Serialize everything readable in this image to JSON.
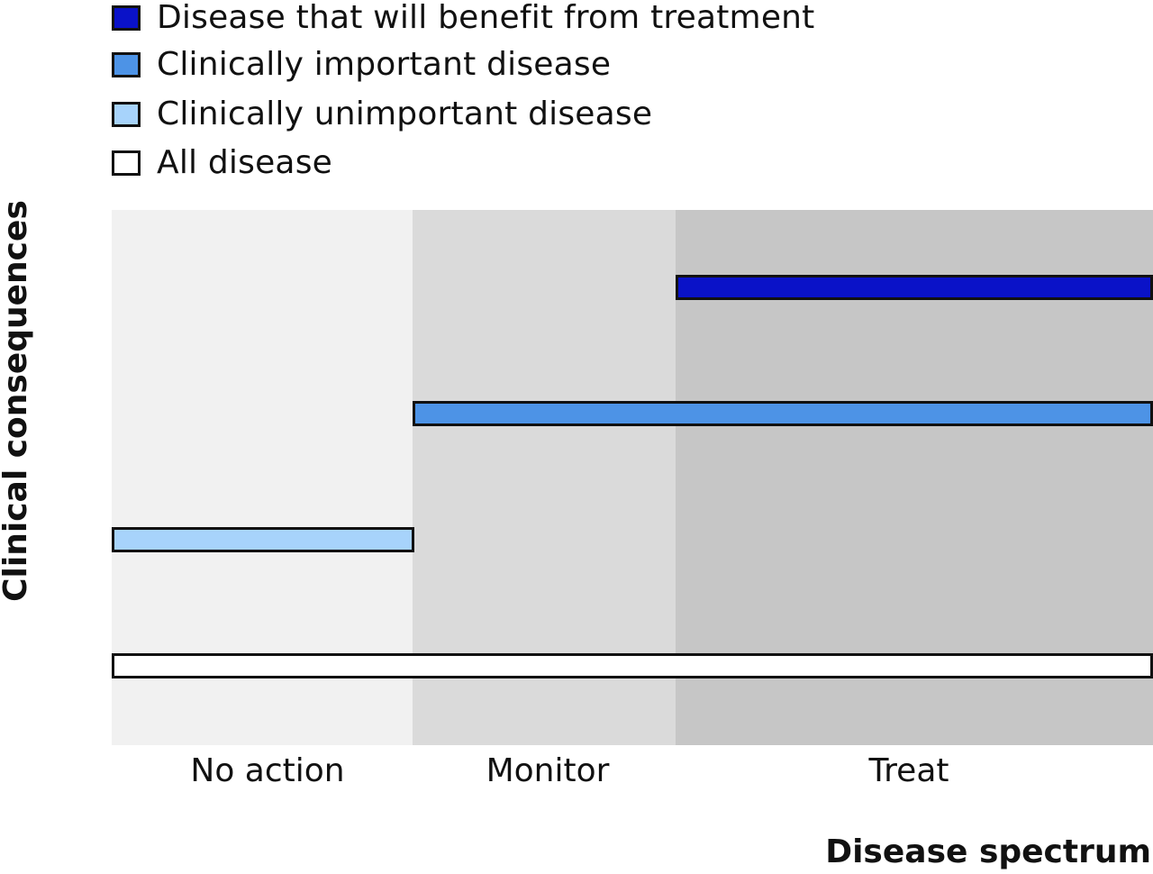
{
  "legend": {
    "items": [
      {
        "label": "Disease that will benefit from treatment",
        "color": "#0a12c8",
        "icon": "square-swatch"
      },
      {
        "label": "Clinically important disease",
        "color": "#4d93e6",
        "icon": "square-swatch"
      },
      {
        "label": "Clinically unimportant disease",
        "color": "#a7d3fb",
        "icon": "square-swatch"
      },
      {
        "label": "All disease",
        "color": "#ffffff",
        "icon": "square-swatch"
      }
    ]
  },
  "zones": [
    {
      "label": "No action",
      "color": "#f1f1f1"
    },
    {
      "label": "Monitor",
      "color": "#dadada"
    },
    {
      "label": "Treat",
      "color": "#c6c6c6"
    }
  ],
  "bars": [
    {
      "series": "Disease that will benefit from treatment",
      "from_zone": "Treat",
      "to_zone": "Treat",
      "color": "#0a12c8"
    },
    {
      "series": "Clinically important disease",
      "from_zone": "Monitor",
      "to_zone": "Treat",
      "color": "#4d93e6"
    },
    {
      "series": "Clinically unimportant disease",
      "from_zone": "No action",
      "to_zone": "No action",
      "color": "#a7d3fb"
    },
    {
      "series": "All disease",
      "from_zone": "No action",
      "to_zone": "Treat",
      "color": "#ffffff"
    }
  ],
  "axes": {
    "x_label": "Disease spectrum",
    "y_label": "Clinical consequences"
  }
}
